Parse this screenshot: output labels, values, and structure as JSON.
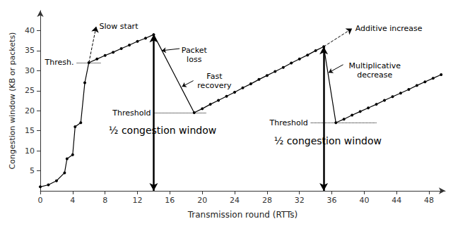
{
  "chart_data": {
    "type": "line",
    "xlabel": "Transmission round (RTTs)",
    "ylabel": "Congestion window (KB or packets)",
    "x": [
      0,
      1,
      2,
      3,
      3.3,
      4,
      4.3,
      5,
      5.5,
      6,
      7,
      8,
      9,
      10,
      11,
      12,
      13,
      14,
      19,
      20,
      21,
      22,
      23,
      24,
      25,
      26,
      27,
      28,
      29,
      30,
      31,
      32,
      33,
      34,
      35,
      36.5,
      37.5,
      38.5,
      39.5,
      40.5,
      41.5,
      42.5,
      43.5,
      44.5,
      45.5,
      46.5,
      47.5,
      48.5,
      49.5
    ],
    "values": [
      1,
      1.5,
      2.5,
      4.5,
      8,
      9,
      16,
      17,
      27,
      32,
      32.9,
      33.8,
      34.6,
      35.5,
      36.4,
      37.3,
      38.1,
      39,
      19.5,
      20.5,
      21.6,
      22.6,
      23.6,
      24.6,
      25.7,
      26.7,
      27.8,
      28.8,
      29.8,
      30.8,
      31.9,
      32.9,
      33.9,
      35,
      36,
      17,
      17.9,
      18.9,
      19.8,
      20.7,
      21.6,
      22.6,
      23.5,
      24.4,
      25.3,
      26.3,
      27.2,
      28.1,
      29
    ],
    "color": "#000000",
    "marker": "circle",
    "xlim": [
      0,
      50
    ],
    "ylim": [
      0,
      45
    ],
    "xticks": [
      0,
      4,
      8,
      12,
      16,
      20,
      24,
      28,
      32,
      36,
      40,
      44,
      48
    ],
    "yticks": [
      5,
      10,
      15,
      20,
      25,
      30,
      35,
      40
    ],
    "grid": false,
    "projections": [
      {
        "label": "Slow start",
        "from": [
          6,
          32
        ],
        "to": [
          6.9,
          41
        ]
      },
      {
        "label": "Additive increase",
        "from": [
          35,
          36
        ],
        "to": [
          38.5,
          40.5
        ]
      }
    ],
    "thresholds": [
      {
        "label": "Thresh.",
        "value": 32,
        "x": [
          4.5,
          7.5
        ]
      },
      {
        "label": "Threshold",
        "value": 19.5,
        "x": [
          14,
          20.5
        ]
      },
      {
        "label": "Threshold",
        "value": 17,
        "x": [
          33.4,
          41.5
        ]
      }
    ],
    "half_window": [
      {
        "label": "½ congestion window",
        "x": 14,
        "y": [
          0,
          39
        ],
        "label_x": 15.1,
        "label_y": 15.1
      },
      {
        "label": "½ congestion window",
        "x": 35,
        "y": [
          0,
          36
        ],
        "label_x": 35.5,
        "label_y": 12.4
      }
    ],
    "notes": [
      {
        "text": "Packet loss",
        "x": 19,
        "y": 34,
        "arrow_from": [
          17.2,
          35.5
        ],
        "arrow_to": [
          15,
          35
        ]
      },
      {
        "text": "Fast recovery",
        "x": 21.5,
        "y": 27.5,
        "arrow_from": [
          18.9,
          27.5
        ],
        "arrow_to": [
          17.5,
          26
        ]
      },
      {
        "text": "Multiplicative decrease",
        "x": 41.3,
        "y": 30,
        "arrow_from": [
          37.4,
          31.5
        ],
        "arrow_to": [
          35.6,
          29.5
        ]
      }
    ]
  }
}
